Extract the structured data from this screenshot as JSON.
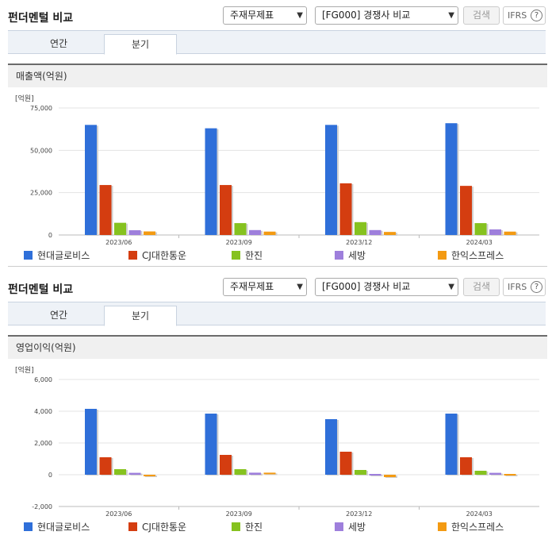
{
  "panels": [
    {
      "title": "펀더멘털 비교",
      "select_statement": "주재무제표",
      "select_compare": "[FG000] 경쟁사 비교",
      "search_label": "검색",
      "ifrs_label": "IFRS",
      "tabs": [
        "연간",
        "분기"
      ],
      "active_tab": 1,
      "metric_title": "매출액(억원)",
      "unit": "[억원]"
    },
    {
      "title": "펀더멘털 비교",
      "select_statement": "주재무제표",
      "select_compare": "[FG000] 경쟁사 비교",
      "search_label": "검색",
      "ifrs_label": "IFRS",
      "tabs": [
        "연간",
        "분기"
      ],
      "active_tab": 1,
      "metric_title": "영업이익(억원)",
      "unit": "[억원]"
    }
  ],
  "chart_data": [
    {
      "type": "bar",
      "categories": [
        "2023/06",
        "2023/09",
        "2023/12",
        "2024/03"
      ],
      "ylim": [
        0,
        75000
      ],
      "yticks": [
        0,
        25000,
        50000,
        75000
      ],
      "ytick_labels": [
        "0",
        "25,000",
        "50,000",
        "75,000"
      ],
      "grid": true,
      "legend": "bottom",
      "series": [
        {
          "name": "현대글로비스",
          "color": "#2f6fd9",
          "values": [
            65000,
            63000,
            65000,
            66000
          ]
        },
        {
          "name": "CJ대한통운",
          "color": "#d43d10",
          "values": [
            29500,
            29500,
            30500,
            29000
          ]
        },
        {
          "name": "한진",
          "color": "#86c21f",
          "values": [
            7200,
            7000,
            7600,
            7000
          ]
        },
        {
          "name": "세방",
          "color": "#9e7fdc",
          "values": [
            2800,
            2900,
            2900,
            3300
          ]
        },
        {
          "name": "한익스프레스",
          "color": "#f39a12",
          "values": [
            2100,
            2000,
            1800,
            2000
          ]
        }
      ]
    },
    {
      "type": "bar",
      "categories": [
        "2023/06",
        "2023/09",
        "2023/12",
        "2024/03"
      ],
      "ylim": [
        -2000,
        6000
      ],
      "yticks": [
        -2000,
        0,
        2000,
        4000,
        6000
      ],
      "ytick_labels": [
        "-2,000",
        "0",
        "2,000",
        "4,000",
        "6,000"
      ],
      "grid": true,
      "legend": "bottom",
      "series": [
        {
          "name": "현대글로비스",
          "color": "#2f6fd9",
          "values": [
            4150,
            3850,
            3500,
            3850
          ]
        },
        {
          "name": "CJ대한통운",
          "color": "#d43d10",
          "values": [
            1100,
            1250,
            1450,
            1100
          ]
        },
        {
          "name": "한진",
          "color": "#86c21f",
          "values": [
            350,
            350,
            300,
            250
          ]
        },
        {
          "name": "세방",
          "color": "#9e7fdc",
          "values": [
            120,
            130,
            0,
            120
          ]
        },
        {
          "name": "한익스프레스",
          "color": "#f39a12",
          "values": [
            -100,
            80,
            -150,
            0
          ]
        }
      ]
    }
  ]
}
